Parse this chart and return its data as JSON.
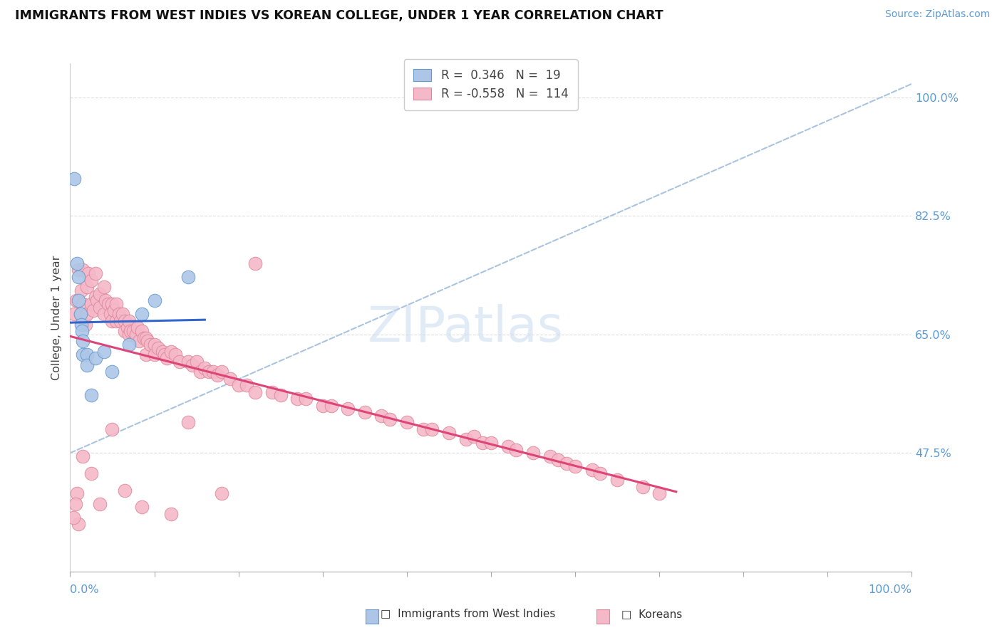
{
  "title": "IMMIGRANTS FROM WEST INDIES VS KOREAN COLLEGE, UNDER 1 YEAR CORRELATION CHART",
  "source": "Source: ZipAtlas.com",
  "ylabel": "College, Under 1 year",
  "right_yticks": [
    0.475,
    0.65,
    0.825,
    1.0
  ],
  "right_yticklabels": [
    "47.5%",
    "65.0%",
    "82.5%",
    "100.0%"
  ],
  "legend_r1": "R =  0.346",
  "legend_n1": "N =  19",
  "legend_r2": "R = -0.558",
  "legend_n2": "N =  114",
  "blue_scatter_color": "#adc6e8",
  "blue_edge_color": "#6699cc",
  "blue_line_color": "#3366cc",
  "pink_scatter_color": "#f5b8c8",
  "pink_edge_color": "#dd8899",
  "pink_line_color": "#dd4477",
  "ref_line_color": "#aac4e0",
  "background_color": "#ffffff",
  "xlim": [
    0.0,
    1.0
  ],
  "ylim": [
    0.3,
    1.05
  ],
  "west_indies_x": [
    0.005,
    0.008,
    0.01,
    0.01,
    0.012,
    0.013,
    0.014,
    0.015,
    0.015,
    0.02,
    0.02,
    0.025,
    0.03,
    0.04,
    0.05,
    0.07,
    0.085,
    0.1,
    0.14
  ],
  "west_indies_y": [
    0.88,
    0.755,
    0.735,
    0.7,
    0.68,
    0.665,
    0.655,
    0.64,
    0.62,
    0.62,
    0.605,
    0.56,
    0.615,
    0.625,
    0.595,
    0.635,
    0.68,
    0.7,
    0.735
  ],
  "koreans_x": [
    0.005,
    0.007,
    0.01,
    0.012,
    0.013,
    0.015,
    0.015,
    0.018,
    0.02,
    0.02,
    0.022,
    0.025,
    0.025,
    0.028,
    0.03,
    0.03,
    0.032,
    0.035,
    0.035,
    0.04,
    0.04,
    0.042,
    0.045,
    0.048,
    0.05,
    0.05,
    0.052,
    0.055,
    0.055,
    0.058,
    0.06,
    0.062,
    0.065,
    0.065,
    0.068,
    0.07,
    0.07,
    0.072,
    0.075,
    0.078,
    0.08,
    0.082,
    0.085,
    0.088,
    0.09,
    0.09,
    0.092,
    0.095,
    0.1,
    0.1,
    0.105,
    0.11,
    0.112,
    0.115,
    0.12,
    0.125,
    0.13,
    0.14,
    0.145,
    0.15,
    0.155,
    0.16,
    0.165,
    0.17,
    0.175,
    0.18,
    0.19,
    0.2,
    0.21,
    0.22,
    0.24,
    0.25,
    0.27,
    0.28,
    0.3,
    0.31,
    0.33,
    0.35,
    0.37,
    0.38,
    0.4,
    0.42,
    0.43,
    0.45,
    0.47,
    0.48,
    0.49,
    0.5,
    0.52,
    0.53,
    0.55,
    0.57,
    0.58,
    0.59,
    0.6,
    0.62,
    0.63,
    0.65,
    0.68,
    0.7,
    0.22,
    0.14,
    0.18,
    0.12,
    0.085,
    0.065,
    0.05,
    0.035,
    0.025,
    0.015,
    0.01,
    0.008,
    0.006,
    0.004
  ],
  "koreans_y": [
    0.68,
    0.7,
    0.745,
    0.68,
    0.715,
    0.695,
    0.745,
    0.665,
    0.72,
    0.68,
    0.74,
    0.73,
    0.695,
    0.685,
    0.74,
    0.705,
    0.7,
    0.71,
    0.69,
    0.72,
    0.68,
    0.7,
    0.695,
    0.68,
    0.695,
    0.67,
    0.685,
    0.695,
    0.67,
    0.68,
    0.67,
    0.68,
    0.67,
    0.655,
    0.66,
    0.65,
    0.67,
    0.655,
    0.655,
    0.65,
    0.66,
    0.64,
    0.655,
    0.645,
    0.645,
    0.62,
    0.64,
    0.635,
    0.635,
    0.62,
    0.63,
    0.625,
    0.62,
    0.615,
    0.625,
    0.62,
    0.61,
    0.61,
    0.605,
    0.61,
    0.595,
    0.6,
    0.595,
    0.595,
    0.59,
    0.595,
    0.585,
    0.575,
    0.575,
    0.565,
    0.565,
    0.56,
    0.555,
    0.555,
    0.545,
    0.545,
    0.54,
    0.535,
    0.53,
    0.525,
    0.52,
    0.51,
    0.51,
    0.505,
    0.495,
    0.5,
    0.49,
    0.49,
    0.485,
    0.48,
    0.475,
    0.47,
    0.465,
    0.46,
    0.455,
    0.45,
    0.445,
    0.435,
    0.425,
    0.415,
    0.755,
    0.52,
    0.415,
    0.385,
    0.395,
    0.42,
    0.51,
    0.4,
    0.445,
    0.47,
    0.37,
    0.415,
    0.4,
    0.38
  ]
}
